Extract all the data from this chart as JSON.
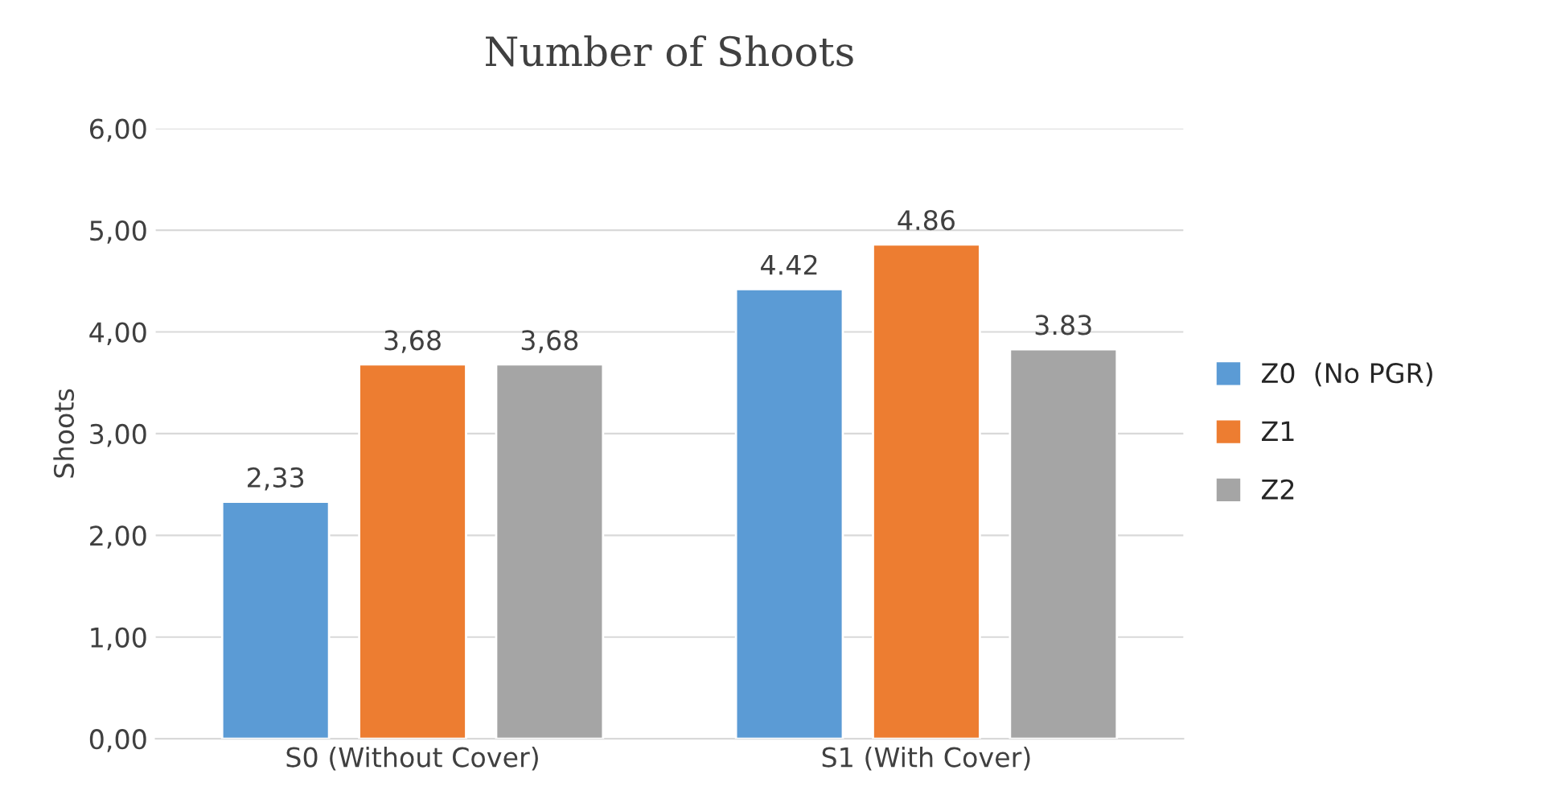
{
  "chart_data": {
    "type": "bar",
    "title": "Number of Shoots",
    "ylabel": "Shoots",
    "categories": [
      "S0 (Without Cover)",
      "S1 (With Cover)"
    ],
    "series": [
      {
        "name": "Z0  (No PGR)",
        "color": "#5b9bd5",
        "values": [
          2.33,
          4.42
        ],
        "value_labels": [
          "2,33",
          "4.42"
        ]
      },
      {
        "name": "Z1",
        "color": "#ed7d31",
        "values": [
          3.68,
          4.86
        ],
        "value_labels": [
          "3,68",
          "4.86"
        ]
      },
      {
        "name": "Z2",
        "color": "#a5a5a5",
        "values": [
          3.68,
          3.83
        ],
        "value_labels": [
          "3,68",
          "3.83"
        ]
      }
    ],
    "ylim": [
      0,
      6
    ],
    "yticks": [
      {
        "value": 0,
        "label": "0,00"
      },
      {
        "value": 1,
        "label": "1,00"
      },
      {
        "value": 2,
        "label": "2,00"
      },
      {
        "value": 3,
        "label": "3,00"
      },
      {
        "value": 4,
        "label": "4,00"
      },
      {
        "value": 5,
        "label": "5,00"
      },
      {
        "value": 6,
        "label": "6,00"
      }
    ],
    "grid": "y",
    "legend": "right"
  }
}
